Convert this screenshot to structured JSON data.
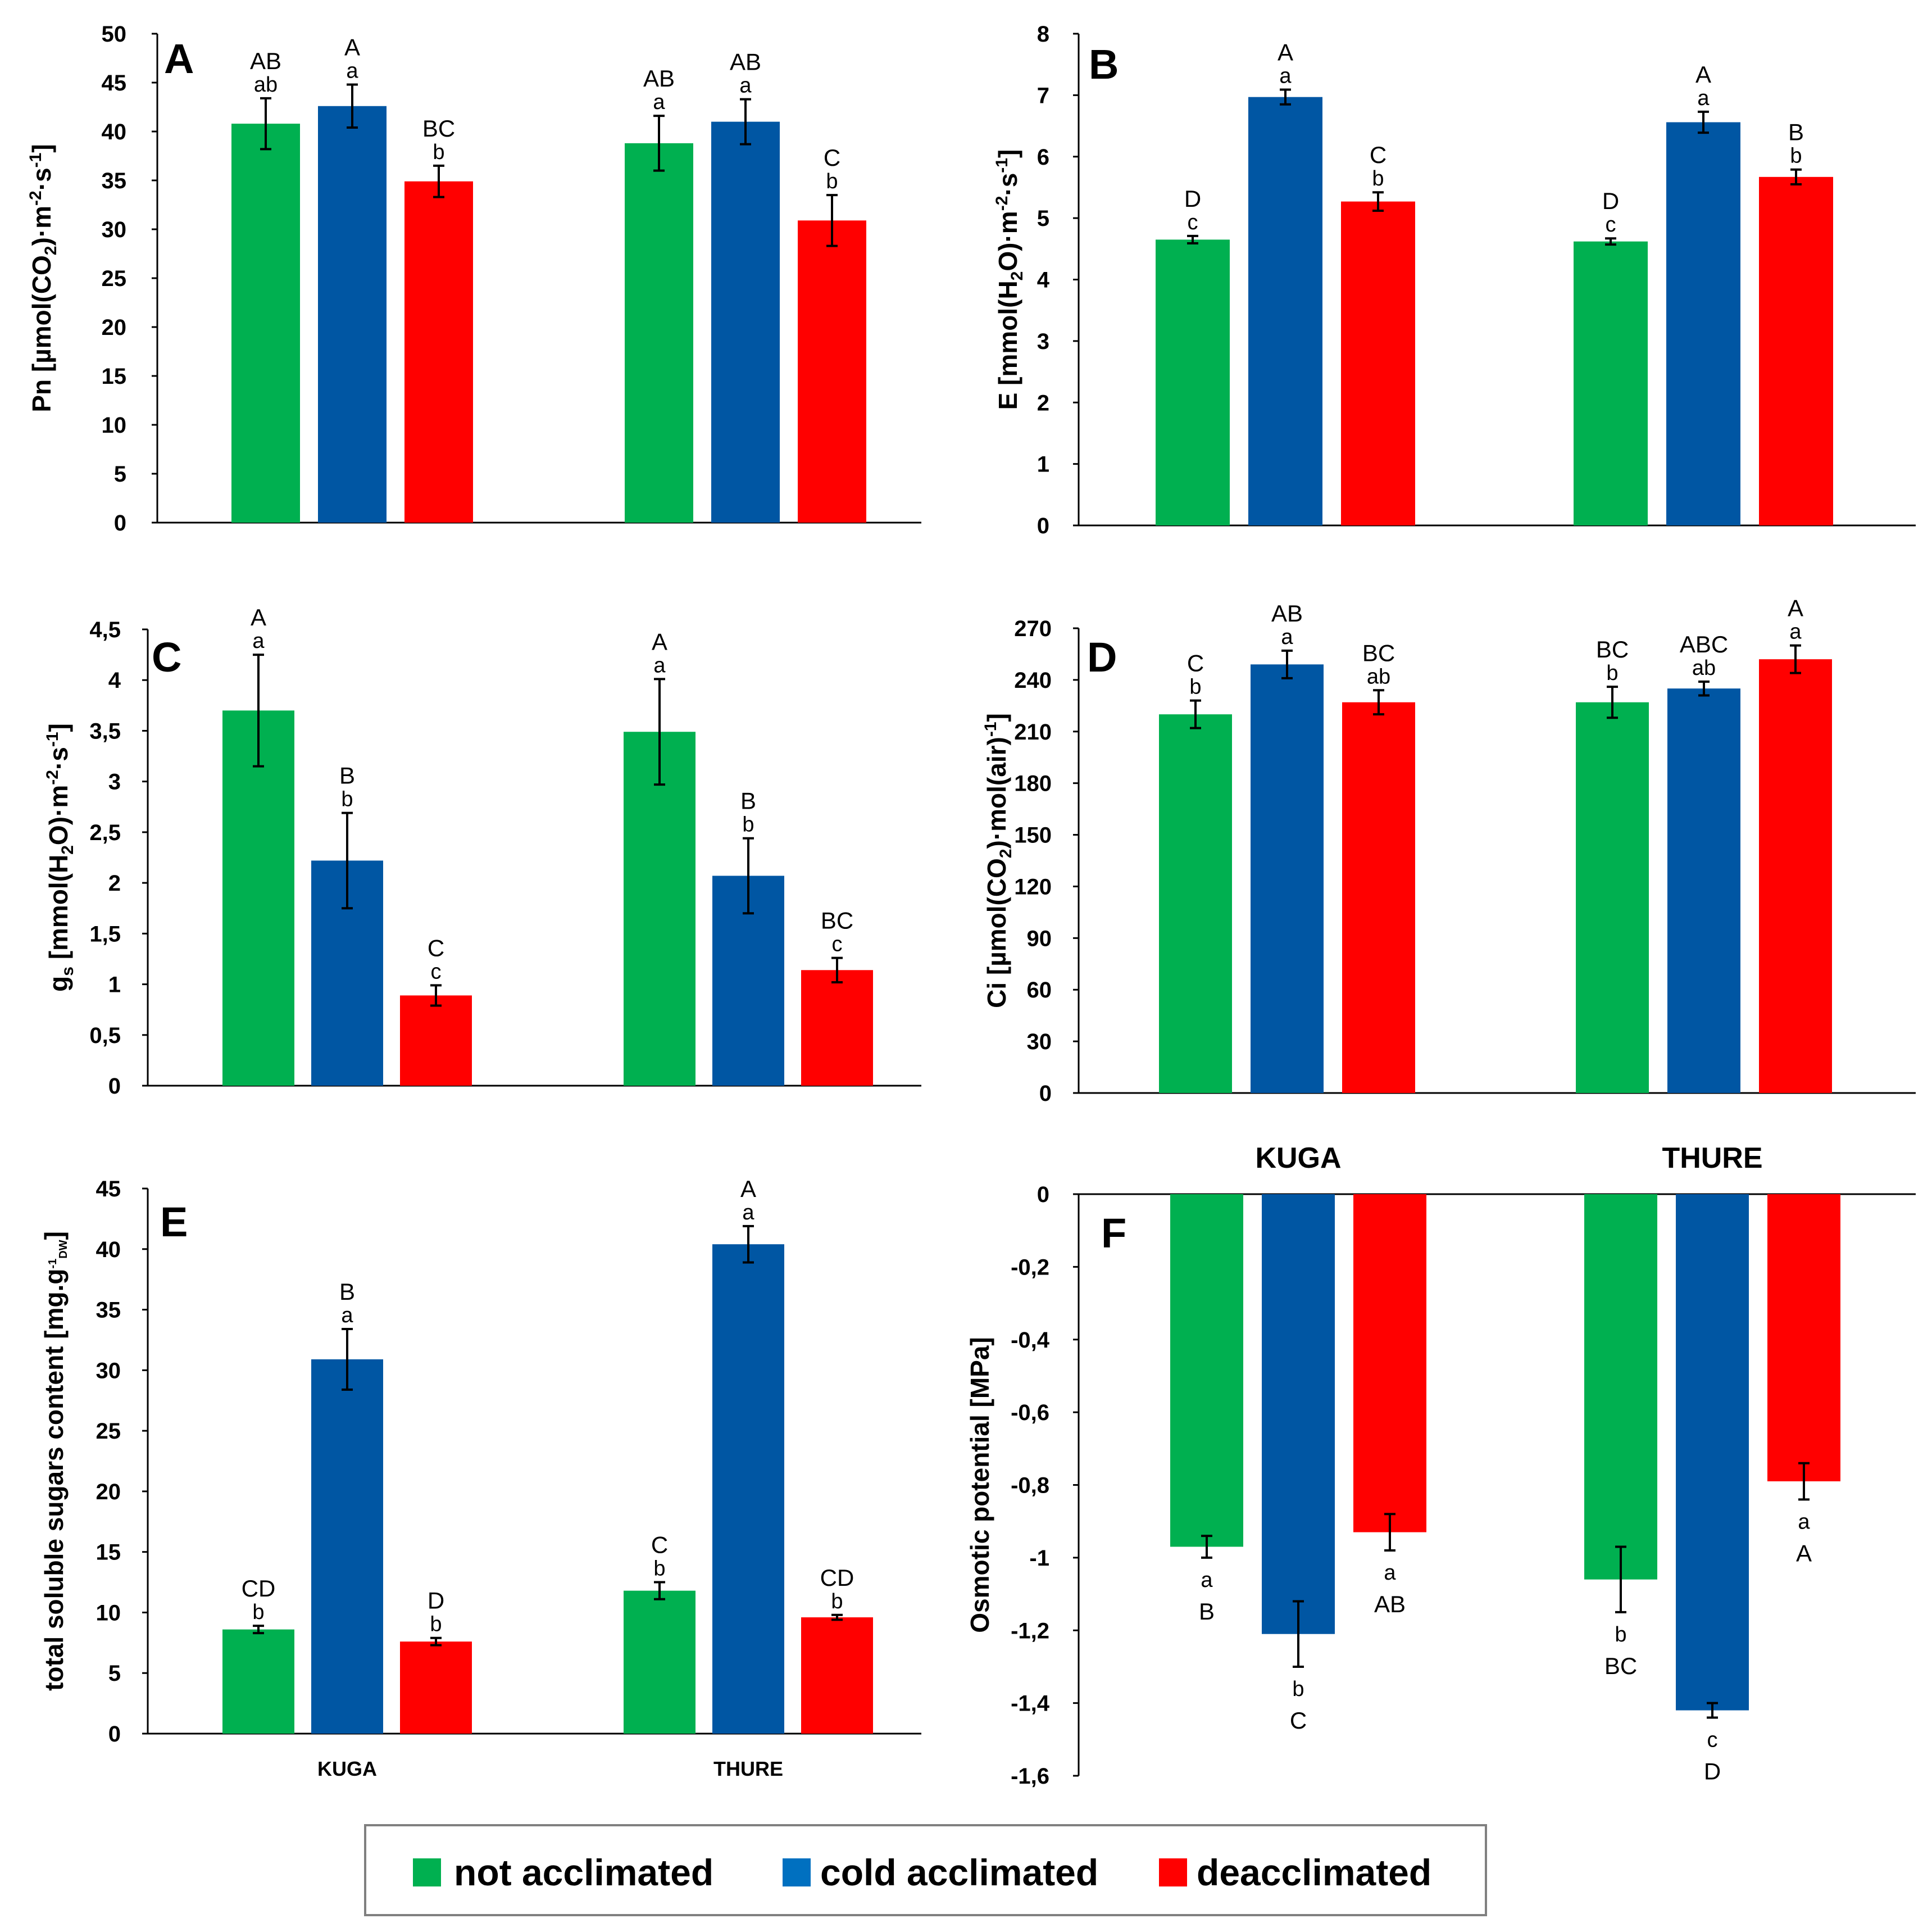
{
  "legend": {
    "items": [
      {
        "label": "not acclimated",
        "color": "#00b050"
      },
      {
        "label": "cold acclimated",
        "color": "#0056a3"
      },
      {
        "label": "deacclimated",
        "color": "#ff0000"
      }
    ]
  },
  "chart_data": [
    {
      "id": "A",
      "type": "bar",
      "letter": "A",
      "ylabel_parts": [
        "Pn [µmol(CO",
        "2",
        ")·m",
        "-2",
        "·s",
        "-1",
        "]"
      ],
      "ylim": [
        0,
        50
      ],
      "yticks": [
        "0",
        "5",
        "10",
        "15",
        "20",
        "25",
        "30",
        "35",
        "40",
        "45",
        "50"
      ],
      "categories": [
        "KUGA",
        "THURE"
      ],
      "series": [
        {
          "name": "not acclimated",
          "values": [
            40.8,
            38.8
          ],
          "errors": [
            2.6,
            2.8
          ],
          "upper": [
            "AB",
            "AB"
          ],
          "lower": [
            "ab",
            "a"
          ]
        },
        {
          "name": "cold acclimated",
          "values": [
            42.6,
            41.0
          ],
          "errors": [
            2.2,
            2.3
          ],
          "upper": [
            "A",
            "AB"
          ],
          "lower": [
            "a",
            "a"
          ]
        },
        {
          "name": "deacclimated",
          "values": [
            34.9,
            30.9
          ],
          "errors": [
            1.6,
            2.6
          ],
          "upper": [
            "BC",
            "C"
          ],
          "lower": [
            "b",
            "b"
          ]
        }
      ]
    },
    {
      "id": "B",
      "type": "bar",
      "letter": "B",
      "ylabel_parts": [
        "E [mmol(H",
        "2",
        "O)·m",
        "-2",
        "·s",
        "-1",
        "]"
      ],
      "ylim": [
        0,
        8
      ],
      "yticks": [
        "0",
        "1",
        "2",
        "3",
        "4",
        "5",
        "6",
        "7",
        "8"
      ],
      "categories": [
        "KUGA",
        "THURE"
      ],
      "series": [
        {
          "name": "not acclimated",
          "values": [
            4.65,
            4.62
          ],
          "errors": [
            0.06,
            0.05
          ],
          "upper": [
            "D",
            "D"
          ],
          "lower": [
            "c",
            "c"
          ]
        },
        {
          "name": "cold acclimated",
          "values": [
            6.97,
            6.56
          ],
          "errors": [
            0.12,
            0.17
          ],
          "upper": [
            "A",
            "A"
          ],
          "lower": [
            "a",
            "a"
          ]
        },
        {
          "name": "deacclimated",
          "values": [
            5.27,
            5.67
          ],
          "errors": [
            0.15,
            0.12
          ],
          "upper": [
            "C",
            "B"
          ],
          "lower": [
            "b",
            "b"
          ]
        }
      ]
    },
    {
      "id": "C",
      "type": "bar",
      "letter": "C",
      "ylabel_parts": [
        "g",
        "s",
        " [mmol(H",
        "2",
        "O)·m",
        "-2",
        "·s",
        "-1",
        "]"
      ],
      "ylim": [
        0,
        4.5
      ],
      "yticks": [
        "0",
        "0,5",
        "1",
        "1,5",
        "2",
        "2,5",
        "3",
        "3,5",
        "4",
        "4,5"
      ],
      "categories": [
        "KUGA",
        "THURE"
      ],
      "series": [
        {
          "name": "not acclimated",
          "values": [
            3.7,
            3.49
          ],
          "errors": [
            0.55,
            0.52
          ],
          "upper": [
            "A",
            "A"
          ],
          "lower": [
            "a",
            "a"
          ]
        },
        {
          "name": "cold acclimated",
          "values": [
            2.22,
            2.07
          ],
          "errors": [
            0.47,
            0.37
          ],
          "upper": [
            "B",
            "B"
          ],
          "lower": [
            "b",
            "b"
          ]
        },
        {
          "name": "deacclimated",
          "values": [
            0.89,
            1.14
          ],
          "errors": [
            0.1,
            0.12
          ],
          "upper": [
            "C",
            "BC"
          ],
          "lower": [
            "c",
            "c"
          ]
        }
      ]
    },
    {
      "id": "D",
      "type": "bar",
      "letter": "D",
      "ylabel_parts": [
        "Ci [µmol(CO",
        "2",
        ")·mol(air)",
        "-1",
        "]"
      ],
      "ylim": [
        0,
        270
      ],
      "yticks": [
        "0",
        "30",
        "60",
        "90",
        "120",
        "150",
        "180",
        "210",
        "240",
        "270"
      ],
      "categories": [
        "KUGA",
        "THURE"
      ],
      "series": [
        {
          "name": "not acclimated",
          "values": [
            220,
            227
          ],
          "errors": [
            8,
            9
          ],
          "upper": [
            "C",
            "BC"
          ],
          "lower": [
            "b",
            "b"
          ]
        },
        {
          "name": "cold acclimated",
          "values": [
            249,
            235
          ],
          "errors": [
            8,
            4
          ],
          "upper": [
            "AB",
            "ABC"
          ],
          "lower": [
            "a",
            "ab"
          ]
        },
        {
          "name": "deacclimated",
          "values": [
            227,
            252
          ],
          "errors": [
            7,
            8
          ],
          "upper": [
            "BC",
            "A"
          ],
          "lower": [
            "ab",
            "a"
          ]
        }
      ]
    },
    {
      "id": "E",
      "type": "bar",
      "letter": "E",
      "ylabel_parts": [
        "total soluble sugars content [mg.g",
        "-1",
        "DW",
        "]"
      ],
      "ylim": [
        0,
        45
      ],
      "yticks": [
        "0",
        "5",
        "10",
        "15",
        "20",
        "25",
        "30",
        "35",
        "40",
        "45"
      ],
      "categories": [
        "KUGA",
        "THURE"
      ],
      "series": [
        {
          "name": "not acclimated",
          "values": [
            8.6,
            11.8
          ],
          "errors": [
            0.3,
            0.7
          ],
          "upper": [
            "CD",
            "C"
          ],
          "lower": [
            "b",
            "b"
          ]
        },
        {
          "name": "cold acclimated",
          "values": [
            30.9,
            40.4
          ],
          "errors": [
            2.5,
            1.5
          ],
          "upper": [
            "B",
            "A"
          ],
          "lower": [
            "a",
            "a"
          ]
        },
        {
          "name": "deacclimated",
          "values": [
            7.6,
            9.6
          ],
          "errors": [
            0.3,
            0.2
          ],
          "upper": [
            "D",
            "CD"
          ],
          "lower": [
            "b",
            "b"
          ]
        }
      ]
    },
    {
      "id": "F",
      "type": "bar",
      "letter": "F",
      "ylabel_parts": [
        "Osmotic potential [MPa]"
      ],
      "ylim": [
        -1.6,
        0
      ],
      "yticks": [
        "-1,6",
        "-1,4",
        "-1,2",
        "-1",
        "-0,8",
        "-0,6",
        "-0,4",
        "-0,2",
        "0"
      ],
      "categories": [
        "KUGA",
        "THURE"
      ],
      "series": [
        {
          "name": "not acclimated",
          "values": [
            -0.97,
            -1.06
          ],
          "errors": [
            0.03,
            0.09
          ],
          "upper": [
            "B",
            "BC"
          ],
          "lower": [
            "a",
            "b"
          ]
        },
        {
          "name": "cold acclimated",
          "values": [
            -1.21,
            -1.42
          ],
          "errors": [
            0.09,
            0.02
          ],
          "upper": [
            "C",
            "D"
          ],
          "lower": [
            "b",
            "c"
          ]
        },
        {
          "name": "deacclimated",
          "values": [
            -0.93,
            -0.79
          ],
          "errors": [
            0.05,
            0.05
          ],
          "upper": [
            "AB",
            "A"
          ],
          "lower": [
            "a",
            "a"
          ]
        }
      ]
    }
  ]
}
